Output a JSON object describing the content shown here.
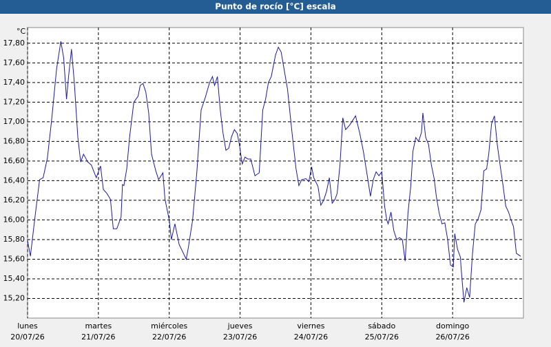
{
  "chart_data": {
    "type": "line",
    "title": "Punto de rocío [°C] escala",
    "y_label": "°C",
    "xlim": [
      0,
      7
    ],
    "ylim": [
      15.0,
      17.96
    ],
    "grid": true,
    "xticks": [
      {
        "value": 0,
        "label": "lunes",
        "date": "20/07/26"
      },
      {
        "value": 1,
        "label": "martes",
        "date": "21/07/26"
      },
      {
        "value": 2,
        "label": "miércoles",
        "date": "22/07/26"
      },
      {
        "value": 3,
        "label": "jueves",
        "date": "23/07/26"
      },
      {
        "value": 4,
        "label": "viernes",
        "date": "24/07/26"
      },
      {
        "value": 5,
        "label": "sábado",
        "date": "25/07/26"
      },
      {
        "value": 6,
        "label": "domingo",
        "date": "26/07/26"
      }
    ],
    "yticks": [
      {
        "value": 15.2,
        "label": "15,20"
      },
      {
        "value": 15.4,
        "label": "15,40"
      },
      {
        "value": 15.6,
        "label": "15,60"
      },
      {
        "value": 15.8,
        "label": "15,80"
      },
      {
        "value": 16.0,
        "label": "16,00"
      },
      {
        "value": 16.2,
        "label": "16,20"
      },
      {
        "value": 16.4,
        "label": "16,40"
      },
      {
        "value": 16.6,
        "label": "16,60"
      },
      {
        "value": 16.8,
        "label": "16,80"
      },
      {
        "value": 17.0,
        "label": "17,00"
      },
      {
        "value": 17.2,
        "label": "17,20"
      },
      {
        "value": 17.4,
        "label": "17,40"
      },
      {
        "value": 17.6,
        "label": "17,60"
      },
      {
        "value": 17.8,
        "label": "17,80"
      }
    ],
    "x": [
      0,
      0.04,
      0.1,
      0.17,
      0.22,
      0.28,
      0.34,
      0.41,
      0.47,
      0.51,
      0.55,
      0.58,
      0.62,
      0.66,
      0.71,
      0.75,
      0.79,
      0.85,
      0.9,
      0.97,
      1.03,
      1.07,
      1.12,
      1.17,
      1.21,
      1.26,
      1.32,
      1.34,
      1.36,
      1.4,
      1.44,
      1.5,
      1.56,
      1.59,
      1.63,
      1.67,
      1.71,
      1.75,
      1.81,
      1.85,
      1.91,
      1.94,
      2.0,
      2.03,
      2.08,
      2.14,
      2.24,
      2.27,
      2.33,
      2.39,
      2.45,
      2.51,
      2.57,
      2.61,
      2.64,
      2.68,
      2.72,
      2.76,
      2.8,
      2.84,
      2.88,
      2.92,
      2.96,
      2.99,
      3.03,
      3.07,
      3.11,
      3.15,
      3.21,
      3.27,
      3.32,
      3.36,
      3.4,
      3.44,
      3.5,
      3.54,
      3.58,
      3.62,
      3.67,
      3.73,
      3.79,
      3.83,
      3.87,
      3.93,
      3.97,
      4.01,
      4.04,
      4.1,
      4.14,
      4.18,
      4.22,
      4.26,
      4.3,
      4.34,
      4.37,
      4.41,
      4.45,
      4.49,
      4.55,
      4.63,
      4.69,
      4.74,
      4.8,
      4.84,
      4.88,
      4.92,
      4.96,
      5.0,
      5.04,
      5.07,
      5.09,
      5.13,
      5.17,
      5.21,
      5.25,
      5.29,
      5.33,
      5.37,
      5.41,
      5.44,
      5.48,
      5.52,
      5.56,
      5.58,
      5.62,
      5.66,
      5.7,
      5.74,
      5.77,
      5.81,
      5.85,
      5.89,
      5.93,
      5.97,
      6.01,
      6.03,
      6.07,
      6.11,
      6.12,
      6.16,
      6.2,
      6.24,
      6.28,
      6.32,
      6.36,
      6.4,
      6.44,
      6.48,
      6.51,
      6.55,
      6.59,
      6.63,
      6.67,
      6.71,
      6.75,
      6.79,
      6.82,
      6.86,
      6.9,
      6.96
    ],
    "series": [
      {
        "color": "#1a1aa0",
        "values": [
          15.79,
          15.63,
          16.0,
          16.41,
          16.43,
          16.63,
          17.02,
          17.54,
          17.82,
          17.65,
          17.23,
          17.47,
          17.74,
          17.4,
          16.84,
          16.59,
          16.67,
          16.59,
          16.56,
          16.43,
          16.55,
          16.31,
          16.27,
          16.21,
          15.91,
          15.91,
          16.03,
          16.36,
          16.35,
          16.52,
          16.84,
          17.2,
          17.26,
          17.37,
          17.39,
          17.3,
          17.09,
          16.67,
          16.5,
          16.41,
          16.48,
          16.21,
          16.0,
          15.8,
          15.96,
          15.75,
          15.6,
          15.72,
          16.0,
          16.49,
          17.12,
          17.25,
          17.4,
          17.46,
          17.37,
          17.46,
          17.12,
          16.88,
          16.71,
          16.73,
          16.85,
          16.92,
          16.88,
          16.77,
          16.57,
          16.64,
          16.62,
          16.62,
          16.45,
          16.48,
          17.12,
          17.23,
          17.4,
          17.46,
          17.68,
          17.76,
          17.71,
          17.54,
          17.33,
          16.91,
          16.52,
          16.35,
          16.41,
          16.42,
          16.39,
          16.54,
          16.43,
          16.34,
          16.15,
          16.2,
          16.29,
          16.43,
          16.17,
          16.21,
          16.27,
          16.56,
          17.04,
          16.92,
          16.97,
          17.06,
          16.88,
          16.7,
          16.43,
          16.24,
          16.41,
          16.49,
          16.45,
          16.49,
          16.14,
          16.0,
          15.96,
          16.08,
          15.89,
          15.8,
          15.82,
          15.8,
          15.58,
          16.07,
          16.35,
          16.7,
          16.84,
          16.8,
          16.89,
          17.09,
          16.84,
          16.77,
          16.56,
          16.42,
          16.24,
          16.07,
          15.96,
          15.97,
          15.8,
          15.54,
          15.52,
          15.86,
          15.7,
          15.62,
          15.51,
          15.16,
          15.31,
          15.21,
          15.65,
          15.96,
          16.01,
          16.1,
          16.5,
          16.52,
          16.67,
          16.98,
          17.06,
          16.77,
          16.56,
          16.36,
          16.14,
          16.08,
          16.01,
          15.93,
          15.66,
          15.63
        ]
      }
    ]
  }
}
